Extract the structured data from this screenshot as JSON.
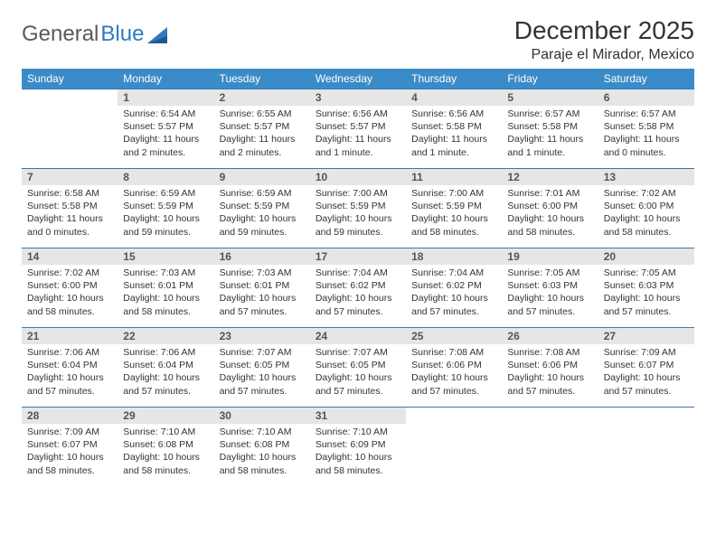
{
  "logo": {
    "text1": "General",
    "text2": "Blue"
  },
  "header": {
    "title": "December 2025",
    "location": "Paraje el Mirador, Mexico"
  },
  "colors": {
    "header_bg": "#3b8bc9",
    "header_text": "#ffffff",
    "daynum_bg": "#e6e6e6",
    "border": "#2f7bbd",
    "text": "#333333",
    "logo_gray": "#5a5a5a",
    "logo_blue": "#2f7bbd"
  },
  "weekdays": [
    "Sunday",
    "Monday",
    "Tuesday",
    "Wednesday",
    "Thursday",
    "Friday",
    "Saturday"
  ],
  "weeks": [
    [
      {
        "n": "",
        "sr": "",
        "ss": "",
        "dl": ""
      },
      {
        "n": "1",
        "sr": "6:54 AM",
        "ss": "5:57 PM",
        "dl": "11 hours and 2 minutes."
      },
      {
        "n": "2",
        "sr": "6:55 AM",
        "ss": "5:57 PM",
        "dl": "11 hours and 2 minutes."
      },
      {
        "n": "3",
        "sr": "6:56 AM",
        "ss": "5:57 PM",
        "dl": "11 hours and 1 minute."
      },
      {
        "n": "4",
        "sr": "6:56 AM",
        "ss": "5:58 PM",
        "dl": "11 hours and 1 minute."
      },
      {
        "n": "5",
        "sr": "6:57 AM",
        "ss": "5:58 PM",
        "dl": "11 hours and 1 minute."
      },
      {
        "n": "6",
        "sr": "6:57 AM",
        "ss": "5:58 PM",
        "dl": "11 hours and 0 minutes."
      }
    ],
    [
      {
        "n": "7",
        "sr": "6:58 AM",
        "ss": "5:58 PM",
        "dl": "11 hours and 0 minutes."
      },
      {
        "n": "8",
        "sr": "6:59 AM",
        "ss": "5:59 PM",
        "dl": "10 hours and 59 minutes."
      },
      {
        "n": "9",
        "sr": "6:59 AM",
        "ss": "5:59 PM",
        "dl": "10 hours and 59 minutes."
      },
      {
        "n": "10",
        "sr": "7:00 AM",
        "ss": "5:59 PM",
        "dl": "10 hours and 59 minutes."
      },
      {
        "n": "11",
        "sr": "7:00 AM",
        "ss": "5:59 PM",
        "dl": "10 hours and 58 minutes."
      },
      {
        "n": "12",
        "sr": "7:01 AM",
        "ss": "6:00 PM",
        "dl": "10 hours and 58 minutes."
      },
      {
        "n": "13",
        "sr": "7:02 AM",
        "ss": "6:00 PM",
        "dl": "10 hours and 58 minutes."
      }
    ],
    [
      {
        "n": "14",
        "sr": "7:02 AM",
        "ss": "6:00 PM",
        "dl": "10 hours and 58 minutes."
      },
      {
        "n": "15",
        "sr": "7:03 AM",
        "ss": "6:01 PM",
        "dl": "10 hours and 58 minutes."
      },
      {
        "n": "16",
        "sr": "7:03 AM",
        "ss": "6:01 PM",
        "dl": "10 hours and 57 minutes."
      },
      {
        "n": "17",
        "sr": "7:04 AM",
        "ss": "6:02 PM",
        "dl": "10 hours and 57 minutes."
      },
      {
        "n": "18",
        "sr": "7:04 AM",
        "ss": "6:02 PM",
        "dl": "10 hours and 57 minutes."
      },
      {
        "n": "19",
        "sr": "7:05 AM",
        "ss": "6:03 PM",
        "dl": "10 hours and 57 minutes."
      },
      {
        "n": "20",
        "sr": "7:05 AM",
        "ss": "6:03 PM",
        "dl": "10 hours and 57 minutes."
      }
    ],
    [
      {
        "n": "21",
        "sr": "7:06 AM",
        "ss": "6:04 PM",
        "dl": "10 hours and 57 minutes."
      },
      {
        "n": "22",
        "sr": "7:06 AM",
        "ss": "6:04 PM",
        "dl": "10 hours and 57 minutes."
      },
      {
        "n": "23",
        "sr": "7:07 AM",
        "ss": "6:05 PM",
        "dl": "10 hours and 57 minutes."
      },
      {
        "n": "24",
        "sr": "7:07 AM",
        "ss": "6:05 PM",
        "dl": "10 hours and 57 minutes."
      },
      {
        "n": "25",
        "sr": "7:08 AM",
        "ss": "6:06 PM",
        "dl": "10 hours and 57 minutes."
      },
      {
        "n": "26",
        "sr": "7:08 AM",
        "ss": "6:06 PM",
        "dl": "10 hours and 57 minutes."
      },
      {
        "n": "27",
        "sr": "7:09 AM",
        "ss": "6:07 PM",
        "dl": "10 hours and 57 minutes."
      }
    ],
    [
      {
        "n": "28",
        "sr": "7:09 AM",
        "ss": "6:07 PM",
        "dl": "10 hours and 58 minutes."
      },
      {
        "n": "29",
        "sr": "7:10 AM",
        "ss": "6:08 PM",
        "dl": "10 hours and 58 minutes."
      },
      {
        "n": "30",
        "sr": "7:10 AM",
        "ss": "6:08 PM",
        "dl": "10 hours and 58 minutes."
      },
      {
        "n": "31",
        "sr": "7:10 AM",
        "ss": "6:09 PM",
        "dl": "10 hours and 58 minutes."
      },
      {
        "n": "",
        "sr": "",
        "ss": "",
        "dl": ""
      },
      {
        "n": "",
        "sr": "",
        "ss": "",
        "dl": ""
      },
      {
        "n": "",
        "sr": "",
        "ss": "",
        "dl": ""
      }
    ]
  ],
  "labels": {
    "sunrise": "Sunrise:",
    "sunset": "Sunset:",
    "daylight": "Daylight:"
  }
}
